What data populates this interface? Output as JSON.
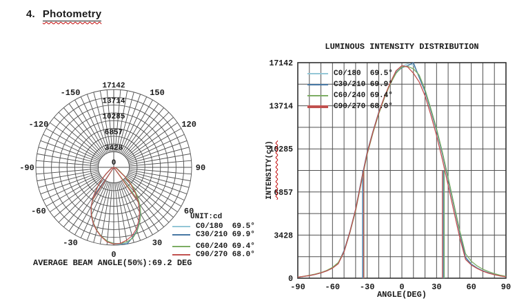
{
  "page": {
    "title_number": "4.",
    "title_text": "Photometry"
  },
  "colors": {
    "c0_180": "#93c6d6",
    "c30_210": "#4677a3",
    "c60_240": "#7cad63",
    "c90_270": "#c1504e",
    "grid": "#4f4f4f",
    "text": "#1a1a1a",
    "spellcheck_wavy": "#c00000"
  },
  "chart_data": [
    {
      "type": "polar",
      "unit_label": "UNIT:cd",
      "r_ticks": [
        0,
        3428,
        6857,
        10285,
        13714,
        17142
      ],
      "r_max": 17142,
      "r_minor_divisions": 10,
      "angle_labels": [
        -150,
        -120,
        -90,
        -60,
        -30,
        0,
        30,
        60,
        90,
        120,
        150
      ],
      "spoke_step_deg": 5,
      "inner_hole_value": 3428,
      "zero_angle_position": "bottom",
      "average_beam_angle_label": "AVERAGE BEAM ANGLE(50%):69.2 DEG",
      "note": "plots the same four C-plane series as the cartesian chart: radius = intensity(cd), angle from bottom, beam-edge radial lines drawn to the 50% intensity level"
    },
    {
      "type": "line",
      "title": "LUMINOUS INTENSITY DISTRIBUTION",
      "xlabel": "ANGLE(DEG)",
      "ylabel": "INTENSITY(cd)",
      "xlim": [
        -90,
        90
      ],
      "ylim": [
        0,
        17142
      ],
      "x_ticks": [
        -90,
        -60,
        -30,
        0,
        30,
        60,
        90
      ],
      "y_ticks": [
        0,
        3428,
        6857,
        10285,
        13714,
        17142
      ],
      "x_minor_step": 10,
      "y_minor_divisions": 10,
      "grid": "on",
      "legend_position": "top-left",
      "half_max_marker_value": 8571,
      "x": [
        -90,
        -85,
        -80,
        -75,
        -70,
        -65,
        -60,
        -55,
        -50,
        -45,
        -40,
        -35,
        -30,
        -25,
        -20,
        -15,
        -10,
        -5,
        0,
        5,
        10,
        15,
        20,
        25,
        30,
        35,
        40,
        45,
        50,
        55,
        60,
        65,
        70,
        75,
        80,
        85,
        90
      ],
      "series": [
        {
          "name": "C0/180  69.5°",
          "color": "#93c6d6",
          "beam_angle_deg": 69.5,
          "beam_edges": [
            -33.2,
            36.3
          ],
          "values": [
            80,
            140,
            210,
            300,
            420,
            580,
            800,
            1150,
            2100,
            3600,
            5400,
            7700,
            9900,
            11600,
            13100,
            14400,
            15500,
            16400,
            16850,
            17050,
            16950,
            16100,
            14900,
            13400,
            11800,
            9950,
            7900,
            5800,
            3700,
            1700,
            1150,
            830,
            600,
            430,
            300,
            200,
            130
          ]
        },
        {
          "name": "C30/210 69.9°",
          "color": "#4677a3",
          "beam_angle_deg": 69.9,
          "beam_edges": [
            -34.0,
            35.9
          ],
          "values": [
            80,
            140,
            210,
            300,
            420,
            580,
            820,
            1200,
            2200,
            3700,
            5500,
            7850,
            10050,
            11700,
            13200,
            14450,
            15500,
            16350,
            16750,
            16900,
            17142,
            15950,
            14850,
            13350,
            11750,
            9900,
            7850,
            5750,
            3650,
            1650,
            1100,
            800,
            580,
            420,
            290,
            190,
            120
          ]
        },
        {
          "name": "C60/240 69.4°",
          "color": "#7cad63",
          "beam_angle_deg": 69.4,
          "beam_edges": [
            -32.8,
            36.6
          ],
          "values": [
            90,
            150,
            230,
            330,
            450,
            620,
            860,
            1250,
            2100,
            3600,
            5350,
            7650,
            9850,
            11550,
            13050,
            14350,
            15450,
            16300,
            16800,
            16850,
            16650,
            16150,
            15000,
            13500,
            11900,
            10050,
            8000,
            5900,
            3800,
            1950,
            1350,
            980,
            720,
            520,
            360,
            240,
            150
          ]
        },
        {
          "name": "C90/270 68.0°",
          "color": "#c1504e",
          "beam_angle_deg": 68.0,
          "beam_edges": [
            -33.0,
            35.0
          ],
          "values": [
            80,
            140,
            210,
            300,
            420,
            580,
            800,
            1150,
            2100,
            3650,
            5450,
            7750,
            9950,
            11650,
            13150,
            14450,
            15550,
            16500,
            16900,
            16800,
            16300,
            15600,
            14500,
            13000,
            11350,
            9450,
            7400,
            5300,
            3250,
            1500,
            1050,
            780,
            560,
            400,
            280,
            180,
            110
          ]
        }
      ]
    }
  ]
}
